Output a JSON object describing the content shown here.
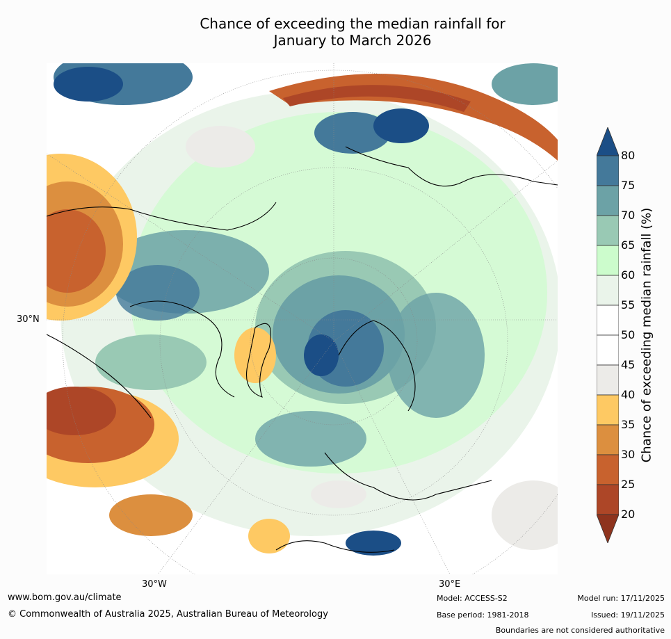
{
  "title": {
    "line1": "Chance of exceeding the median rainfall for",
    "line2": "January to March 2026"
  },
  "map": {
    "lat_label": "30°N",
    "lon_labels": [
      "30°W",
      "30°E"
    ]
  },
  "colorbar": {
    "label": "Chance of exceeding median rainfall (%)",
    "ticks": [
      "80",
      "75",
      "70",
      "65",
      "60",
      "55",
      "50",
      "45",
      "40",
      "35",
      "30",
      "25",
      "20"
    ],
    "colors": {
      "above_80": "#1b4e86",
      "75_80": "#44799a",
      "70_75": "#6ca2a6",
      "65_70": "#99c9b4",
      "60_65": "#ccfccc",
      "55_60": "#eaf4ea",
      "50_55": "#ffffff",
      "45_50": "#ffffff",
      "40_45": "#ecebe8",
      "35_40": "#fec963",
      "30_35": "#dc8f3f",
      "25_30": "#c8622e",
      "20_25": "#ad4627",
      "below_20": "#8e331d"
    }
  },
  "footer": {
    "website": "www.bom.gov.au/climate",
    "copyright": "© Commonwealth of Australia 2025, Australian Bureau of Meteorology",
    "model": "Model: ACCESS-S2",
    "base_period": "Base period: 1981-2018",
    "model_run": "Model run: 17/11/2025",
    "issued": "Issued: 19/11/2025",
    "disclaimer": "Boundaries are not considered authoritative"
  }
}
